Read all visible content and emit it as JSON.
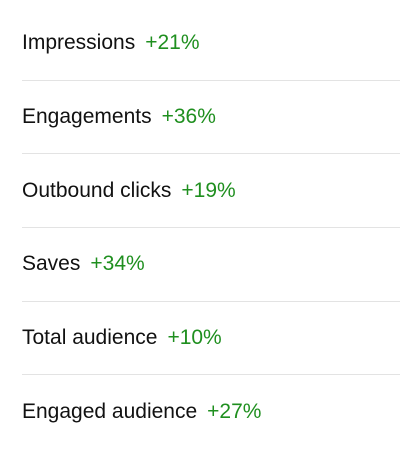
{
  "metrics": [
    {
      "label": "Impressions",
      "change": "+21%"
    },
    {
      "label": "Engagements",
      "change": "+36%"
    },
    {
      "label": "Outbound clicks",
      "change": "+19%"
    },
    {
      "label": "Saves",
      "change": "+34%"
    },
    {
      "label": "Total audience",
      "change": "+10%"
    },
    {
      "label": "Engaged audience",
      "change": "+27%"
    }
  ]
}
